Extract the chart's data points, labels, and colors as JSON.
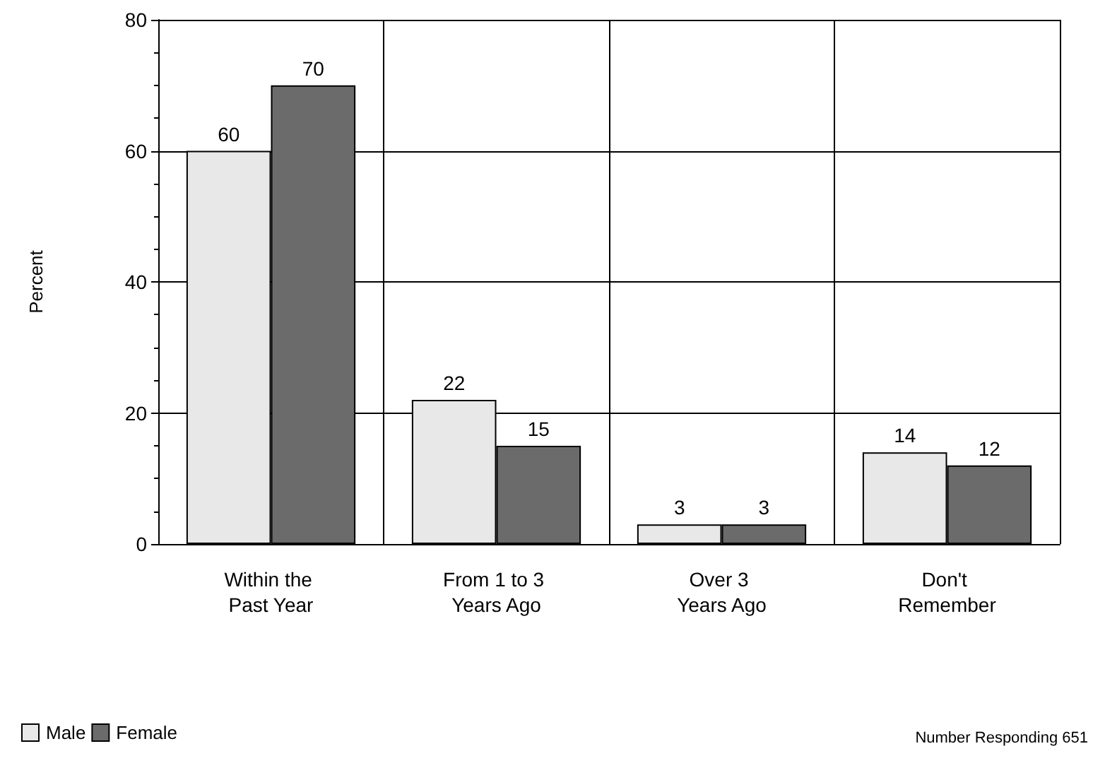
{
  "chart_data": {
    "type": "bar",
    "ylabel": "Percent",
    "categories": [
      "Within the Past Year",
      "From 1 to 3 Years Ago",
      "Over 3 Years Ago",
      "Don't Remember"
    ],
    "series": [
      {
        "name": "Male",
        "color": "#e8e8e8",
        "values": [
          60,
          22,
          3,
          14
        ]
      },
      {
        "name": "Female",
        "color": "#6b6b6b",
        "values": [
          70,
          15,
          3,
          12
        ]
      }
    ],
    "ylim": [
      0,
      80
    ],
    "yticks": [
      0,
      20,
      40,
      60,
      80
    ],
    "grid": true,
    "data_labels": true,
    "legend": "bottom left",
    "annotations": [
      "Number Responding 651"
    ]
  }
}
